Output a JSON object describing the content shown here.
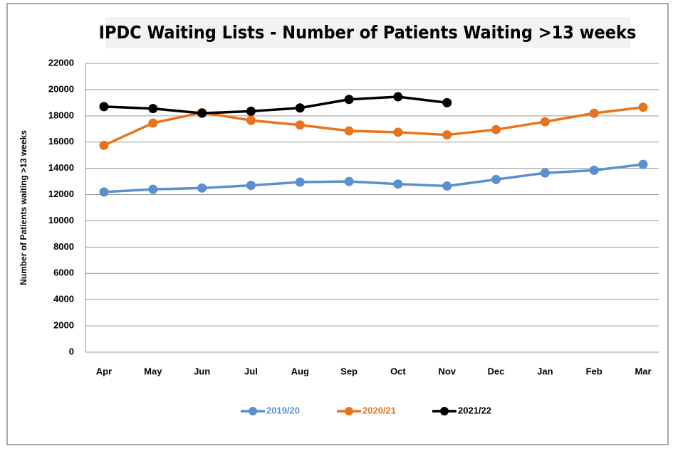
{
  "chart_data": {
    "type": "line",
    "title": "IPDC Waiting Lists - Number of Patients Waiting >13 weeks",
    "y_label": "Number of Patients waiting >13 weeks",
    "categories": [
      "Apr",
      "May",
      "Jun",
      "Jul",
      "Aug",
      "Sep",
      "Oct",
      "Nov",
      "Dec",
      "Jan",
      "Feb",
      "Mar"
    ],
    "series": [
      {
        "name": "2019/20",
        "color": "#5b8fd0",
        "values": [
          12200,
          12400,
          12500,
          12700,
          12950,
          13000,
          12800,
          12650,
          13150,
          13650,
          13850,
          14300
        ]
      },
      {
        "name": "2020/21",
        "color": "#e9731c",
        "values": [
          15750,
          17450,
          18250,
          17650,
          17300,
          16850,
          16750,
          16550,
          16950,
          17550,
          18200,
          18650
        ]
      },
      {
        "name": "2021/22",
        "color": "#000000",
        "values": [
          18700,
          18550,
          18200,
          18350,
          18600,
          19250,
          19450,
          19000,
          null,
          null,
          null,
          null
        ]
      }
    ],
    "ylim": [
      0,
      22000
    ],
    "yticks": [
      0,
      2000,
      4000,
      6000,
      8000,
      10000,
      12000,
      14000,
      16000,
      18000,
      20000,
      22000
    ],
    "grid": true,
    "legend": "bottom"
  }
}
